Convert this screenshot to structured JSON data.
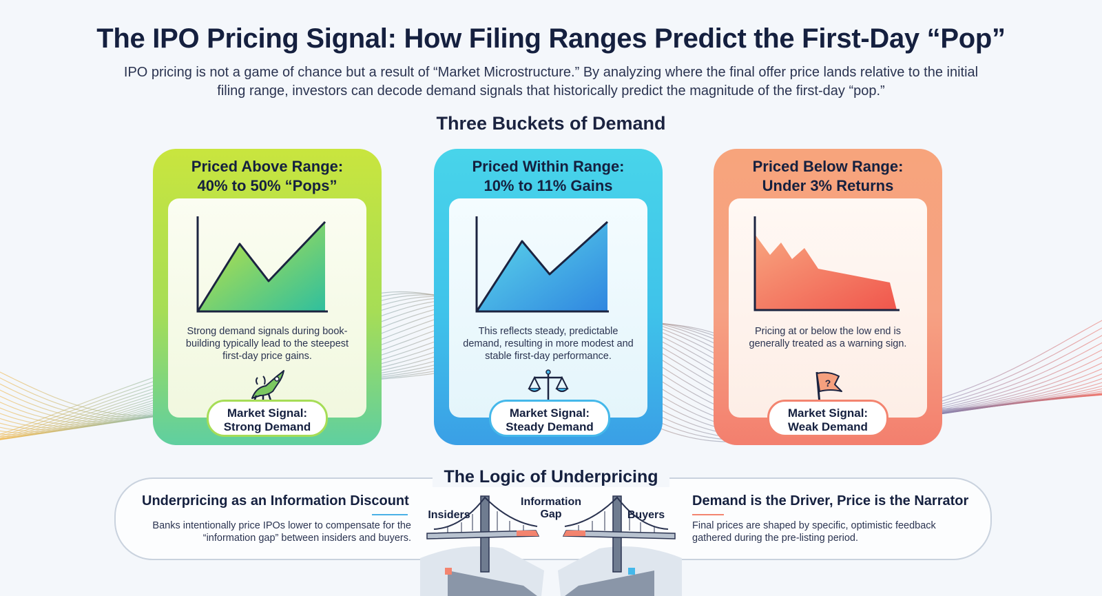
{
  "title": "The IPO Pricing Signal: How Filing Ranges Predict the First-Day “Pop”",
  "subtitle": "IPO pricing is not a game of chance but a result of “Market Microstructure.” By analyzing where the final offer price lands relative to the initial filing range, investors can decode demand signals that historically predict the magnitude of the first-day “pop.”",
  "buckets_heading": "Three Buckets of Demand",
  "buckets": [
    {
      "title_line1": "Priced Above Range:",
      "title_line2": "40% to 50% “Pops”",
      "description": "Strong demand signals during book-building typically lead to the steepest first-day price gains.",
      "icon": "rocket-bull-icon",
      "signal_line1": "Market Signal:",
      "signal_line2": "Strong Demand",
      "color": "#a6dd56"
    },
    {
      "title_line1": "Priced Within Range:",
      "title_line2": "10% to 11% Gains",
      "description": "This reflects steady, predictable demand, resulting in more modest and stable first-day performance.",
      "icon": "balance-scale-icon",
      "signal_line1": "Market Signal:",
      "signal_line2": "Steady Demand",
      "color": "#45b8ea"
    },
    {
      "title_line1": "Priced Below Range:",
      "title_line2": "Under 3% Returns",
      "description": "Pricing at or below the low end is generally treated as a warning sign.",
      "icon": "question-flag-icon",
      "signal_line1": "Market Signal:",
      "signal_line2": "Weak Demand",
      "color": "#f3846f"
    }
  ],
  "logic": {
    "heading": "The Logic of Underpricing",
    "left_heading": "Underpricing as an Information Discount",
    "left_text": "Banks intentionally price IPOs lower to compensate for the “information gap” between insiders and buyers.",
    "right_heading": "Demand is the Driver, Price is the Narrator",
    "right_text": "Final prices are shaped by specific, optimistic feedback gathered during the pre-listing period.",
    "bridge_left_label": "Insiders",
    "bridge_center_line1": "Information",
    "bridge_center_line2": "Gap",
    "bridge_right_label": "Buyers"
  }
}
